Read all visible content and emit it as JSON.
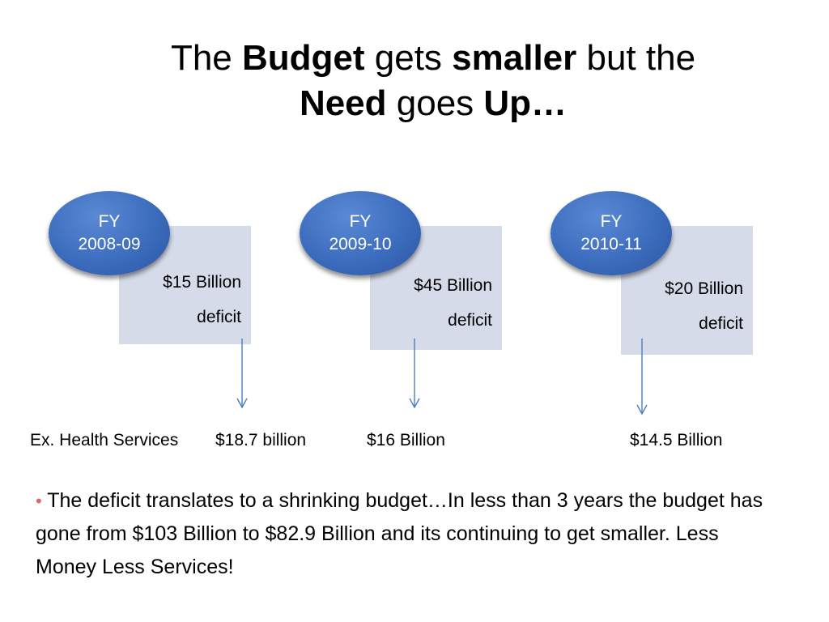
{
  "title": {
    "part1": "The ",
    "budget": "Budget",
    "part2": " gets ",
    "smaller": "smaller",
    "part3": " but the",
    "need": "Need",
    "part4": " goes ",
    "up": "Up…"
  },
  "years": [
    {
      "fy": "FY",
      "range": "2008-09",
      "amount": "$15 Billion",
      "deficit": "deficit",
      "service": "$18.7 billion"
    },
    {
      "fy": "FY",
      "range": "2009-10",
      "amount": "$45 Billion",
      "deficit": "deficit",
      "service": "$16 Billion"
    },
    {
      "fy": "FY",
      "range": "2010-11",
      "amount": "$20 Billion",
      "deficit": "deficit",
      "service": "$14.5 Billion"
    }
  ],
  "service_prefix": "Ex. Health Services",
  "bullet": "The deficit translates to a shrinking budget…In less than 3 years the budget has gone from $103 Billion to $82.9 Billion and its continuing to get smaller. Less Money Less Services!",
  "colors": {
    "bubble": "#3c6cbd",
    "box": "#d6dbea",
    "arrow": "#4a7ebb",
    "bullet_dot": "#e06666"
  }
}
